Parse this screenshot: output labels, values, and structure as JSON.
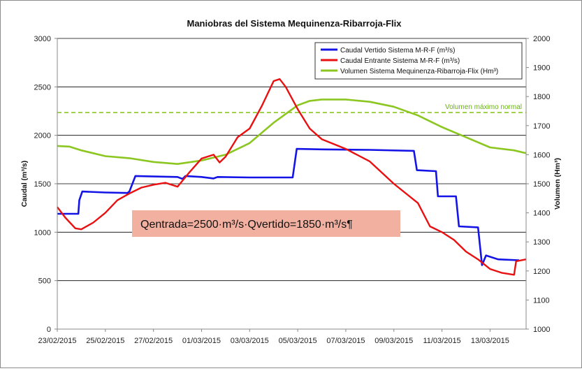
{
  "chart_data": {
    "type": "line",
    "title": "Maniobras del Sistema Mequinenza-Ribarroja-Flix",
    "ylabel": "Caudal (m³/s)",
    "y2label": "Volumen (Hm³)",
    "x_range": [
      "2015-02-23",
      "2015-03-14T12:00"
    ],
    "ylim": [
      0,
      3000
    ],
    "y2lim": [
      1000,
      2000
    ],
    "x_ticks": [
      "23/02/2015",
      "25/02/2015",
      "27/02/2015",
      "01/03/2015",
      "03/03/2015",
      "05/03/2015",
      "07/03/2015",
      "09/03/2015",
      "11/03/2015",
      "13/03/2015"
    ],
    "x_tick_dates": [
      "2015-02-23",
      "2015-02-25",
      "2015-02-27",
      "2015-03-01",
      "2015-03-03",
      "2015-03-05",
      "2015-03-07",
      "2015-03-09",
      "2015-03-11",
      "2015-03-13"
    ],
    "y_ticks": [
      "0",
      "500",
      "1000",
      "1500",
      "2000",
      "2500",
      "3000"
    ],
    "y2_ticks": [
      "1000",
      "1100",
      "1200",
      "1300",
      "1400",
      "1500",
      "1600",
      "1700",
      "1800",
      "1900",
      "2000"
    ],
    "grid": "horizontal",
    "legend_position": "top-right",
    "series": [
      {
        "name": "Caudal Vertido Sistema M-R-F (m³/s)",
        "axis": "left",
        "color": "#1414e6",
        "step": true,
        "points": [
          [
            "2015-02-23T00:00",
            1190
          ],
          [
            "2015-02-23T21:00",
            1190
          ],
          [
            "2015-02-23T22:00",
            1330
          ],
          [
            "2015-02-24T01:00",
            1420
          ],
          [
            "2015-02-25T00:00",
            1410
          ],
          [
            "2015-02-25T22:00",
            1405
          ],
          [
            "2015-02-26T00:00",
            1420
          ],
          [
            "2015-02-26T06:00",
            1580
          ],
          [
            "2015-02-27T00:00",
            1575
          ],
          [
            "2015-02-28T00:00",
            1570
          ],
          [
            "2015-02-28T05:00",
            1550
          ],
          [
            "2015-02-28T08:00",
            1580
          ],
          [
            "2015-03-01T00:00",
            1570
          ],
          [
            "2015-03-01T12:00",
            1555
          ],
          [
            "2015-03-01T16:00",
            1570
          ],
          [
            "2015-03-03T00:00",
            1565
          ],
          [
            "2015-03-04T19:00",
            1565
          ],
          [
            "2015-03-04T23:00",
            1860
          ],
          [
            "2015-03-06T00:00",
            1855
          ],
          [
            "2015-03-08T00:00",
            1850
          ],
          [
            "2015-03-09T20:00",
            1840
          ],
          [
            "2015-03-09T23:00",
            1640
          ],
          [
            "2015-03-10T18:00",
            1630
          ],
          [
            "2015-03-10T20:00",
            1370
          ],
          [
            "2015-03-11T14:00",
            1370
          ],
          [
            "2015-03-11T17:00",
            1060
          ],
          [
            "2015-03-12T12:00",
            1050
          ],
          [
            "2015-03-12T16:00",
            660
          ],
          [
            "2015-03-12T20:00",
            760
          ],
          [
            "2015-03-13T08:00",
            720
          ],
          [
            "2015-03-14T05:00",
            710
          ]
        ]
      },
      {
        "name": "Caudal Entrante Sistema M-R-F (m³/s)",
        "axis": "left",
        "color": "#e81010",
        "points": [
          [
            "2015-02-23T00:00",
            1260
          ],
          [
            "2015-02-23T08:00",
            1150
          ],
          [
            "2015-02-23T18:00",
            1040
          ],
          [
            "2015-02-24T00:00",
            1030
          ],
          [
            "2015-02-24T12:00",
            1100
          ],
          [
            "2015-02-25T00:00",
            1200
          ],
          [
            "2015-02-25T12:00",
            1330
          ],
          [
            "2015-02-26T00:00",
            1400
          ],
          [
            "2015-02-26T12:00",
            1460
          ],
          [
            "2015-02-27T00:00",
            1490
          ],
          [
            "2015-02-27T12:00",
            1510
          ],
          [
            "2015-02-28T00:00",
            1470
          ],
          [
            "2015-02-28T12:00",
            1620
          ],
          [
            "2015-03-01T00:00",
            1760
          ],
          [
            "2015-03-01T12:00",
            1800
          ],
          [
            "2015-03-01T18:00",
            1720
          ],
          [
            "2015-03-02T00:00",
            1780
          ],
          [
            "2015-03-02T12:00",
            1980
          ],
          [
            "2015-03-03T00:00",
            2070
          ],
          [
            "2015-03-03T12:00",
            2300
          ],
          [
            "2015-03-04T00:00",
            2560
          ],
          [
            "2015-03-04T06:00",
            2580
          ],
          [
            "2015-03-04T12:00",
            2500
          ],
          [
            "2015-03-05T00:00",
            2270
          ],
          [
            "2015-03-05T12:00",
            2070
          ],
          [
            "2015-03-06T00:00",
            1960
          ],
          [
            "2015-03-07T00:00",
            1860
          ],
          [
            "2015-03-08T00:00",
            1730
          ],
          [
            "2015-03-09T00:00",
            1500
          ],
          [
            "2015-03-10T00:00",
            1300
          ],
          [
            "2015-03-10T12:00",
            1060
          ],
          [
            "2015-03-11T00:00",
            1000
          ],
          [
            "2015-03-11T12:00",
            920
          ],
          [
            "2015-03-12T00:00",
            800
          ],
          [
            "2015-03-12T12:00",
            720
          ],
          [
            "2015-03-13T00:00",
            620
          ],
          [
            "2015-03-13T12:00",
            580
          ],
          [
            "2015-03-14T00:00",
            560
          ],
          [
            "2015-03-14T02:00",
            700
          ],
          [
            "2015-03-14T12:00",
            720
          ]
        ]
      },
      {
        "name": "Volumen Sistema Mequinenza-Ribarroja-Flix (Hm³)",
        "axis": "right",
        "color": "#8cc620",
        "points": [
          [
            "2015-02-23T00:00",
            1630
          ],
          [
            "2015-02-23T12:00",
            1628
          ],
          [
            "2015-02-24T00:00",
            1615
          ],
          [
            "2015-02-25T00:00",
            1595
          ],
          [
            "2015-02-26T00:00",
            1588
          ],
          [
            "2015-02-27T00:00",
            1575
          ],
          [
            "2015-02-28T00:00",
            1568
          ],
          [
            "2015-03-01T00:00",
            1580
          ],
          [
            "2015-03-02T00:00",
            1600
          ],
          [
            "2015-03-03T00:00",
            1640
          ],
          [
            "2015-03-04T00:00",
            1710
          ],
          [
            "2015-03-05T00:00",
            1770
          ],
          [
            "2015-03-05T12:00",
            1785
          ],
          [
            "2015-03-06T00:00",
            1790
          ],
          [
            "2015-03-07T00:00",
            1790
          ],
          [
            "2015-03-08T00:00",
            1782
          ],
          [
            "2015-03-09T00:00",
            1765
          ],
          [
            "2015-03-10T00:00",
            1735
          ],
          [
            "2015-03-11T00:00",
            1695
          ],
          [
            "2015-03-12T00:00",
            1660
          ],
          [
            "2015-03-13T00:00",
            1625
          ],
          [
            "2015-03-14T00:00",
            1615
          ],
          [
            "2015-03-14T12:00",
            1605
          ]
        ]
      }
    ],
    "reference_lines": [
      {
        "label": "Volumen máximo normal",
        "axis": "right",
        "value": 1745,
        "color": "#8cc620",
        "style": "dashed"
      }
    ],
    "annotation_box": {
      "text": "Qentrada=2500·m³/s·Qvertido=1850·m³/s¶",
      "background": "#f2b0a0"
    }
  }
}
